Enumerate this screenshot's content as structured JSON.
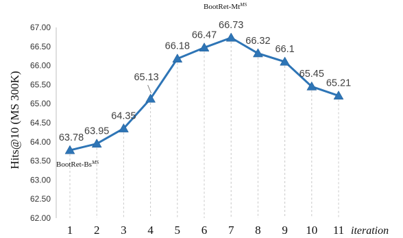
{
  "chart_data": {
    "type": "line",
    "x": [
      "1",
      "2",
      "3",
      "4",
      "5",
      "6",
      "7",
      "8",
      "9",
      "10",
      "11"
    ],
    "series": [
      {
        "values": [
          63.78,
          63.95,
          64.35,
          65.13,
          66.18,
          66.47,
          66.73,
          66.32,
          66.1,
          65.45,
          65.21
        ],
        "value_labels": [
          "63.78",
          "63.95",
          "64.35",
          "65.13",
          "66.18",
          "66.47",
          "66.73",
          "66.32",
          "66.1",
          "65.45",
          "65.21"
        ],
        "color": "#2e75b6",
        "marker": "triangle"
      }
    ],
    "ylabel": "Hits@10 (MS 300K)",
    "xlabel": "iteration",
    "ylim": [
      62.0,
      67.0
    ],
    "yticks": [
      "62.00",
      "62.50",
      "63.00",
      "63.50",
      "64.00",
      "64.50",
      "65.00",
      "65.50",
      "66.00",
      "66.50",
      "67.00"
    ],
    "grid": "vertical dashed drop lines",
    "legend": "none",
    "annotations": [
      {
        "main": "BootRet-Bs",
        "sup": "MS",
        "at": "1"
      },
      {
        "main": "BootRet-Mt",
        "sup": "MS",
        "at": "7"
      }
    ]
  }
}
